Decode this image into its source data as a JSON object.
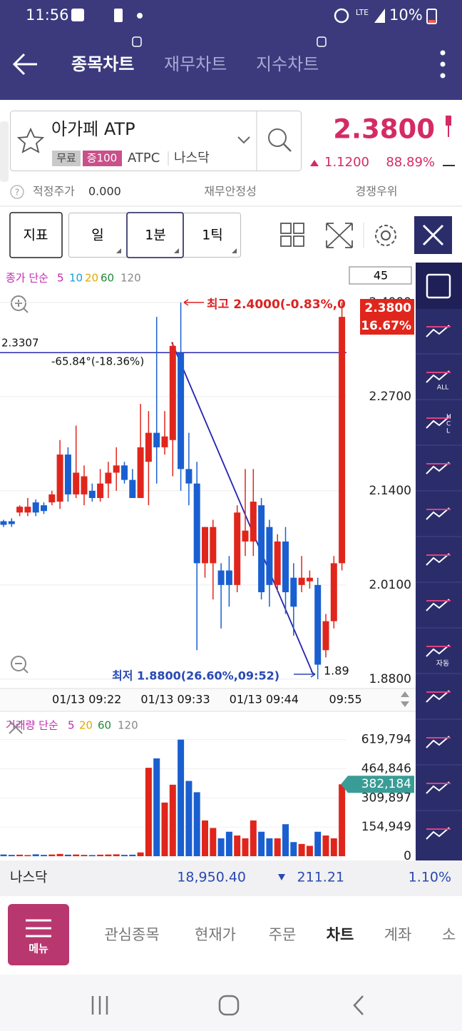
{
  "status_bar": {
    "time": "11:56",
    "network": "LTE",
    "battery": "10%"
  },
  "header": {
    "tabs": [
      "종목차트",
      "재무차트",
      "지수차트"
    ]
  },
  "stock": {
    "name": "아가페 ATP",
    "tags": [
      "무료",
      "증100"
    ],
    "ticker": "ATPC",
    "market": "나스닥",
    "price": "2.3800",
    "change": "1.1200",
    "change_pct": "88.89%"
  },
  "info_row": {
    "fair_label": "적정주가",
    "fair_value": "0.000",
    "stability": "재무안정성",
    "competition": "경쟁우위"
  },
  "controls": {
    "indicator": "지표",
    "periods": [
      "일",
      "1분",
      "1틱"
    ],
    "count": "45"
  },
  "legend_price": {
    "title": "종가 단순",
    "periods": [
      "5",
      "10",
      "20",
      "60",
      "120"
    ]
  },
  "legend_volume": {
    "title": "거래량 단순",
    "periods": [
      "5",
      "20",
      "60",
      "120"
    ]
  },
  "toolbar": {
    "labels": [
      "ALL",
      "H",
      "C",
      "L",
      "자동"
    ]
  },
  "chart_data": [
    {
      "type": "candlestick",
      "categories": [
        null,
        null,
        null,
        null,
        null,
        null,
        null,
        null,
        null,
        "01/13 09:22",
        null,
        null,
        null,
        null,
        null,
        null,
        null,
        null,
        null,
        null,
        "01/13 09:33",
        null,
        null,
        null,
        null,
        null,
        null,
        null,
        null,
        null,
        null,
        "01/13 09:44",
        null,
        null,
        null,
        null,
        null,
        null,
        null,
        null,
        null,
        null,
        "09:55"
      ],
      "open": [
        2.098,
        2.098,
        2.11,
        2.11,
        2.124,
        2.12,
        2.124,
        2.125,
        2.19,
        2.135,
        2.135,
        2.14,
        2.13,
        2.15,
        2.165,
        2.175,
        2.155,
        2.13,
        2.18,
        2.22,
        2.2,
        2.21,
        2.33,
        2.17,
        2.15,
        2.04,
        2.04,
        2.03,
        2.03,
        2.01,
        2.07,
        2.07,
        2.12,
        2.09,
        2.01,
        2.07,
        2.02,
        2.01,
        2.015,
        2.01,
        1.92,
        1.96,
        2.04
      ],
      "high": [
        2.1,
        2.102,
        2.12,
        2.13,
        2.128,
        2.124,
        2.14,
        2.21,
        2.2,
        2.23,
        2.175,
        2.15,
        2.17,
        2.18,
        2.2,
        2.18,
        2.17,
        2.26,
        2.25,
        2.38,
        2.25,
        2.345,
        2.4,
        2.22,
        2.18,
        2.09,
        2.1,
        2.04,
        2.05,
        2.12,
        2.17,
        2.17,
        2.13,
        2.1,
        2.08,
        2.09,
        2.04,
        2.05,
        2.03,
        2.02,
        1.97,
        2.05,
        2.4
      ],
      "low": [
        2.09,
        2.09,
        2.105,
        2.105,
        2.105,
        2.108,
        2.12,
        2.115,
        2.125,
        2.13,
        2.12,
        2.125,
        2.125,
        2.13,
        2.14,
        2.15,
        2.13,
        2.13,
        2.12,
        2.15,
        2.19,
        2.16,
        2.14,
        2.12,
        1.92,
        2.02,
        1.99,
        1.95,
        1.98,
        2.0,
        2.05,
        2.05,
        1.99,
        1.98,
        2.0,
        1.97,
        1.94,
        2.0,
        2.005,
        1.88,
        1.91,
        1.95,
        2.03
      ],
      "close": [
        2.093,
        2.094,
        2.118,
        2.118,
        2.11,
        2.112,
        2.135,
        2.19,
        2.135,
        2.165,
        2.16,
        2.13,
        2.15,
        2.165,
        2.175,
        2.155,
        2.13,
        2.2,
        2.22,
        2.2,
        2.215,
        2.34,
        2.17,
        2.15,
        2.04,
        2.09,
        2.09,
        2.01,
        2.01,
        2.11,
        2.085,
        2.125,
        2.0,
        2.01,
        2.07,
        2.0,
        1.98,
        2.02,
        2.02,
        1.9,
        1.96,
        2.04,
        2.38
      ],
      "up_color": "#e0261c",
      "down_color": "#1a5fd0",
      "ylim": [
        1.872,
        2.453
      ],
      "yticks": [
        {
          "value": 2.4,
          "label": "2.4000"
        },
        {
          "value": 2.27,
          "label": "2.2700"
        },
        {
          "value": 2.14,
          "label": "2.1400"
        },
        {
          "value": 2.01,
          "label": "2.0100"
        },
        {
          "value": 1.88,
          "label": "1.8800"
        }
      ],
      "hline": 2.3307,
      "annotations": {
        "high": "최고 2.4000(-0.83%,0",
        "low": "최저 1.8800(26.60%,09:52)",
        "angle": "-65.84°(-18.36%)",
        "cut": "1.89",
        "badge": [
          "2.3800",
          "16.67%"
        ]
      }
    },
    {
      "type": "bar",
      "values": [
        9000,
        7000,
        8000,
        6000,
        10000,
        7000,
        9000,
        12000,
        8000,
        9000,
        7000,
        6000,
        8000,
        9000,
        10000,
        7000,
        8000,
        20000,
        470000,
        520000,
        285000,
        380000,
        619794,
        400000,
        340000,
        190000,
        150000,
        95000,
        130000,
        110000,
        95000,
        190000,
        130000,
        95000,
        95000,
        170000,
        75000,
        65000,
        55000,
        130000,
        110000,
        95000,
        382184
      ],
      "value_labels": {
        "42": "382,184"
      },
      "ylim": [
        0,
        660000
      ],
      "yticks": [
        {
          "value": 619794,
          "label": "619,794"
        },
        {
          "value": 464846,
          "label": "464,846"
        },
        {
          "value": 309897,
          "label": "309,897"
        },
        {
          "value": 154949,
          "label": "154,949"
        },
        0
      ]
    }
  ],
  "ticker_bar": {
    "name": "나스닥",
    "index": "18,950.40",
    "change": "211.21",
    "pct": "1.10%"
  },
  "bottom_nav": {
    "menu": "메뉴",
    "tabs": [
      "관심종목",
      "현재가",
      "주문",
      "차트",
      "계좌",
      "소"
    ]
  }
}
